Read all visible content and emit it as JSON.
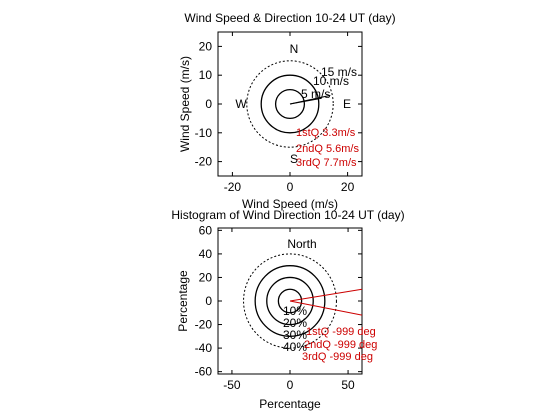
{
  "chart_data": [
    {
      "type": "scatter",
      "title": "Wind Speed & Direction 10-24 UT (day)",
      "xlabel": "Wind Speed (m/s)",
      "ylabel": "Wind Speed (m/s)",
      "xlim": [
        -25,
        25
      ],
      "ylim": [
        -25,
        25
      ],
      "xticks": [
        -20,
        0,
        20
      ],
      "yticks": [
        -20,
        -10,
        0,
        10,
        20
      ],
      "compass": {
        "north": "N",
        "south": "S",
        "east": "E",
        "west": "W"
      },
      "rings": [
        {
          "radius": 5,
          "label": "5 m/s",
          "style": "solid"
        },
        {
          "radius": 10,
          "label": "10 m/s",
          "style": "solid"
        },
        {
          "radius": 15,
          "label": "15 m/s",
          "style": "dashed"
        }
      ],
      "vectors": [
        {
          "x": 14,
          "y": 3
        },
        {
          "x": 11,
          "y": 2
        }
      ],
      "annotations": [
        "1stQ 3.3m/s",
        "2ndQ 5.6m/s",
        "3rdQ 7.7m/s"
      ]
    },
    {
      "type": "scatter",
      "title": "Histogram of Wind Direction 10-24 UT (day)",
      "xlabel": "Percentage",
      "ylabel": "Percentage",
      "xlim": [
        -62,
        62
      ],
      "ylim": [
        -62,
        62
      ],
      "xticks": [
        -50,
        0,
        50
      ],
      "yticks": [
        -60,
        -40,
        -20,
        0,
        20,
        40,
        60
      ],
      "north_label": "North",
      "rings": [
        {
          "radius": 10,
          "label": "10%",
          "style": "solid"
        },
        {
          "radius": 20,
          "label": "20%",
          "style": "solid"
        },
        {
          "radius": 30,
          "label": "30%",
          "style": "solid"
        },
        {
          "radius": 40,
          "label": "40%",
          "style": "dashed"
        }
      ],
      "vectors": [
        {
          "x": 62,
          "y": 10
        },
        {
          "x": 62,
          "y": -12
        }
      ],
      "annotations": [
        "1stQ -999 deg",
        "2ndQ -999 deg",
        "3rdQ -999 deg"
      ]
    }
  ],
  "colors": {
    "annotation": "#cc0000",
    "vector": "#cc0000"
  }
}
